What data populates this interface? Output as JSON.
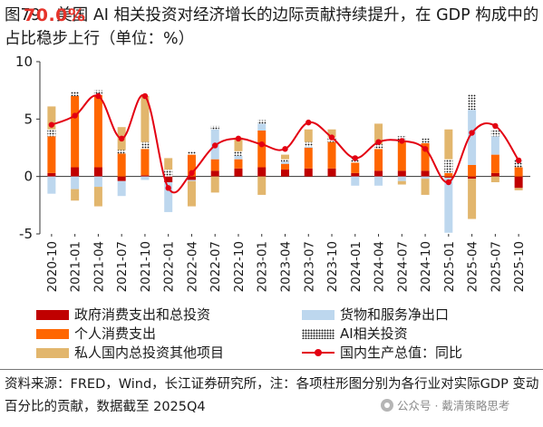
{
  "title": {
    "text": "图79：美国 AI 相关投资对经济增长的边际贡献持续提升，在 GDP 构成中的占比稳步上行（单位：%）",
    "overlay": "70.0%"
  },
  "colors": {
    "gov": "#c00000",
    "consumption": "#ff6600",
    "net_exports": "#bdd7ee",
    "ai": "#000000",
    "other_private": "#e2b66d",
    "gdp": "#e30012"
  },
  "chart_data": {
    "type": "bar",
    "stacked": true,
    "x": [
      "2020-10",
      "2021-01",
      "2021-04",
      "2021-07",
      "2021-10",
      "2022-01",
      "2022-04",
      "2022-07",
      "2022-10",
      "2023-01",
      "2023-04",
      "2023-07",
      "2023-10",
      "2024-01",
      "2024-04",
      "2024-07",
      "2024-10",
      "2025-01",
      "2025-04",
      "2025-07",
      "2025-10"
    ],
    "xtick_labels": [
      "2020-10",
      "2021-01",
      "2021-04",
      "2021-07",
      "2021-10",
      "2022-01",
      "2022-04",
      "2022-07",
      "2022-10",
      "2023-01",
      "2023-04",
      "2023-07",
      "2023-10",
      "2024-01",
      "2024-04",
      "2024-07",
      "2024-10",
      "2025-01",
      "2025-04",
      "2025-07",
      "2025-10"
    ],
    "ylim": [
      -5,
      10
    ],
    "yticks": [
      -5,
      0,
      5,
      10
    ],
    "series": [
      {
        "name": "政府消费支出和总投资",
        "key": "gov",
        "values": [
          0.3,
          0.8,
          0.8,
          -0.4,
          0.1,
          -0.5,
          -0.3,
          0.5,
          0.7,
          0.8,
          0.6,
          0.7,
          0.7,
          0.3,
          0.5,
          0.5,
          0.5,
          -0.1,
          -0.2,
          0.3,
          -1.0
        ]
      },
      {
        "name": "个人消费支出",
        "key": "consumption",
        "values": [
          3.2,
          6.2,
          6.3,
          2.0,
          2.3,
          0.0,
          1.9,
          1.0,
          0.8,
          3.2,
          0.5,
          1.8,
          2.3,
          0.9,
          1.9,
          2.5,
          2.4,
          0.3,
          1.0,
          1.6,
          0.8
        ]
      },
      {
        "name": "货物和服务净出口",
        "key": "net_exports",
        "values": [
          -1.5,
          -1.1,
          -0.9,
          -1.3,
          -0.3,
          -2.6,
          -0.1,
          2.6,
          0.3,
          0.6,
          0.2,
          0.1,
          0.0,
          -0.8,
          -0.8,
          -0.4,
          -0.2,
          -4.8,
          4.8,
          1.6,
          0.0
        ]
      },
      {
        "name": "AI相关投资",
        "key": "ai",
        "values": [
          0.6,
          0.4,
          0.4,
          0.3,
          0.6,
          0.6,
          0.3,
          0.3,
          0.4,
          0.3,
          0.2,
          0.4,
          0.4,
          0.4,
          0.4,
          0.5,
          0.4,
          1.2,
          1.4,
          0.5,
          0.6
        ]
      },
      {
        "name": "私人国内总投资其他项目",
        "key": "other_private",
        "values": [
          2.0,
          -1.0,
          -1.7,
          2.0,
          4.0,
          1.0,
          -2.2,
          -1.4,
          1.2,
          -1.6,
          0.4,
          1.1,
          0.7,
          0.0,
          1.8,
          -0.3,
          -1.4,
          2.6,
          -3.5,
          -0.5,
          -0.2
        ]
      }
    ],
    "line": {
      "name": "国内生产总值：同比",
      "key": "gdp",
      "values": [
        4.5,
        5.3,
        7.0,
        3.3,
        7.0,
        -1.0,
        0.3,
        2.7,
        3.3,
        2.8,
        2.4,
        4.7,
        3.4,
        1.6,
        3.0,
        3.1,
        2.4,
        -0.5,
        3.8,
        4.4,
        1.4
      ]
    },
    "title": "",
    "xlabel": "",
    "ylabel": "",
    "grid": false,
    "legend": "bottom"
  },
  "legend": {
    "gov": "政府消费支出和总投资",
    "net_exports": "货物和服务净出口",
    "consumption": "个人消费支出",
    "ai": "AI相关投资",
    "other_private": "私人国内总投资其他项目",
    "gdp": "国内生产总值：同比"
  },
  "footnote": {
    "text": "资料来源：FRED，Wind，长江证券研究所，注：各项柱形图分别为各行业对实际GDP 变动百分比的贡献，数据截至 2025Q4"
  },
  "watermark": {
    "icon": "wechat-icon",
    "text": "公众号 · 戴清策略思考"
  }
}
